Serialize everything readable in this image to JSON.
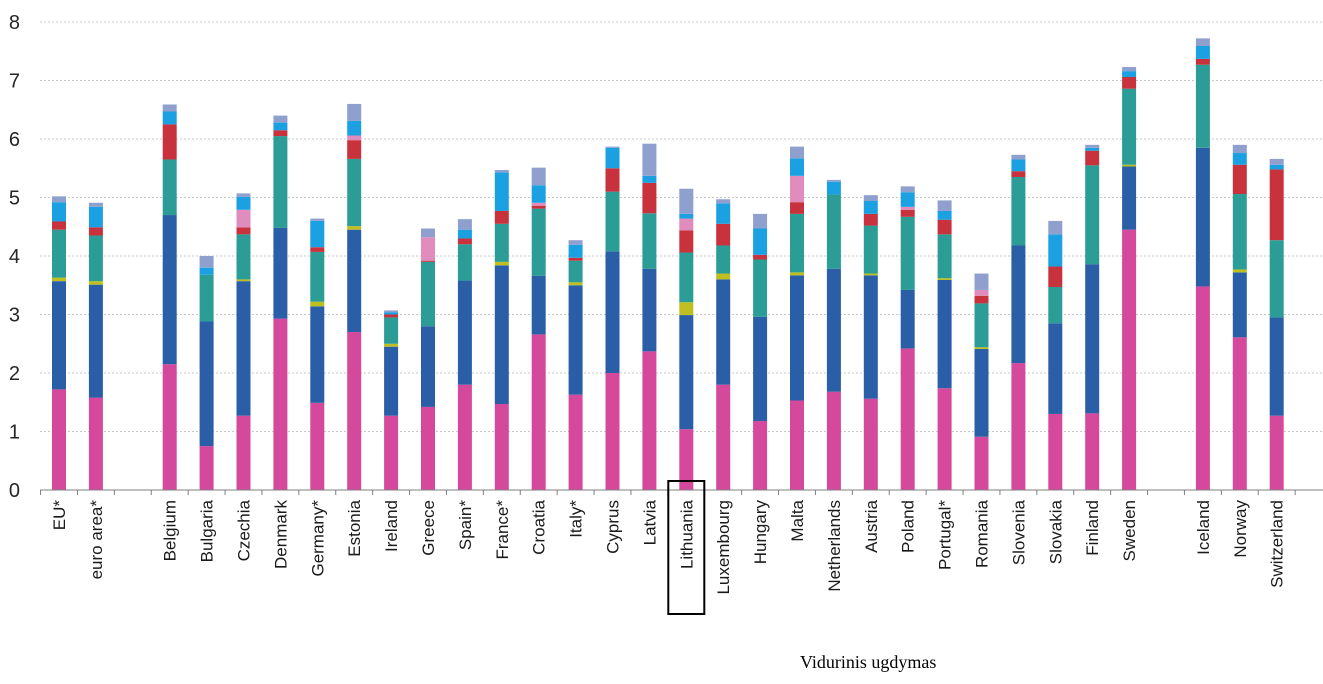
{
  "chart_data": {
    "type": "bar",
    "stacked": true,
    "ylim": [
      0,
      8
    ],
    "yticks": [
      0,
      1,
      2,
      3,
      4,
      5,
      6,
      7,
      8
    ],
    "grid": true,
    "highlighted_category": "Lithuania",
    "caption": "Vidurinis ugdymas",
    "groups": [
      [
        "EU*",
        "euro area*"
      ],
      [
        "Belgium",
        "Bulgaria",
        "Czechia",
        "Denmark",
        "Germany*",
        "Estonia",
        "Ireland",
        "Greece",
        "Spain*",
        "France*",
        "Croatia",
        "Italy*",
        "Cyprus",
        "Latvia",
        "Lithuania",
        "Luxembourg",
        "Hungary",
        "Malta",
        "Netherlands",
        "Austria",
        "Poland",
        "Portugal*",
        "Romania",
        "Slovenia",
        "Slovakia",
        "Finland",
        "Sweden"
      ],
      [
        "Iceland",
        "Norway",
        "Switzerland"
      ]
    ],
    "categories": [
      "EU*",
      "euro area*",
      "Belgium",
      "Bulgaria",
      "Czechia",
      "Denmark",
      "Germany*",
      "Estonia",
      "Ireland",
      "Greece",
      "Spain*",
      "France*",
      "Croatia",
      "Italy*",
      "Cyprus",
      "Latvia",
      "Lithuania",
      "Luxembourg",
      "Hungary",
      "Malta",
      "Netherlands",
      "Austria",
      "Poland",
      "Portugal*",
      "Romania",
      "Slovenia",
      "Slovakia",
      "Finland",
      "Sweden",
      "Iceland",
      "Norway",
      "Switzerland"
    ],
    "series": [
      {
        "color": "#d4499b",
        "values": [
          1.72,
          1.58,
          2.15,
          0.75,
          1.27,
          2.93,
          1.49,
          2.7,
          1.27,
          1.42,
          1.8,
          1.47,
          2.66,
          1.63,
          2.0,
          2.37,
          1.04,
          1.8,
          1.18,
          1.53,
          1.68,
          1.56,
          2.42,
          1.74,
          0.91,
          2.17,
          1.3,
          1.31,
          4.45,
          3.48,
          2.61,
          1.27
        ]
      },
      {
        "color": "#2a5fa8",
        "values": [
          1.85,
          1.93,
          2.55,
          2.13,
          2.3,
          1.55,
          1.65,
          1.75,
          1.18,
          1.38,
          1.78,
          2.37,
          1.0,
          1.87,
          2.08,
          1.41,
          1.95,
          1.8,
          1.78,
          2.14,
          2.1,
          2.11,
          1.0,
          1.85,
          1.5,
          2.01,
          1.55,
          2.55,
          1.08,
          2.37,
          1.11,
          1.68
        ]
      },
      {
        "color": "#bfbf1f",
        "values": [
          0.06,
          0.06,
          0.0,
          0.0,
          0.03,
          0.0,
          0.08,
          0.06,
          0.05,
          0.0,
          0.0,
          0.06,
          0.0,
          0.05,
          0.0,
          0.0,
          0.22,
          0.1,
          0.0,
          0.05,
          0.0,
          0.03,
          0.0,
          0.03,
          0.03,
          0.0,
          0.0,
          0.0,
          0.03,
          0.0,
          0.05,
          0.0
        ]
      },
      {
        "color": "#2c9c96",
        "values": [
          0.82,
          0.78,
          0.95,
          0.8,
          0.77,
          1.57,
          0.85,
          1.15,
          0.45,
          1.1,
          0.62,
          0.65,
          1.15,
          0.37,
          1.02,
          0.95,
          0.85,
          0.48,
          0.98,
          1.0,
          1.27,
          0.82,
          1.25,
          0.75,
          0.75,
          1.17,
          0.62,
          1.69,
          1.3,
          1.42,
          1.29,
          1.32
        ]
      },
      {
        "color": "#c8323c",
        "values": [
          0.14,
          0.14,
          0.6,
          0.0,
          0.12,
          0.1,
          0.08,
          0.32,
          0.05,
          0.02,
          0.1,
          0.22,
          0.05,
          0.05,
          0.4,
          0.52,
          0.38,
          0.37,
          0.08,
          0.2,
          0.0,
          0.2,
          0.12,
          0.25,
          0.13,
          0.1,
          0.35,
          0.25,
          0.2,
          0.1,
          0.5,
          1.21
        ]
      },
      {
        "color": "#e08cbd",
        "values": [
          0.0,
          0.0,
          0.0,
          0.0,
          0.3,
          0.0,
          0.0,
          0.08,
          0.0,
          0.4,
          0.0,
          0.0,
          0.05,
          0.0,
          0.0,
          0.0,
          0.2,
          0.0,
          0.0,
          0.45,
          0.0,
          0.0,
          0.05,
          0.0,
          0.1,
          0.0,
          0.0,
          0.0,
          0.0,
          0.0,
          0.0,
          0.0
        ]
      },
      {
        "color": "#1ba1e2",
        "values": [
          0.33,
          0.35,
          0.22,
          0.12,
          0.22,
          0.13,
          0.45,
          0.25,
          0.04,
          0.0,
          0.15,
          0.66,
          0.3,
          0.22,
          0.35,
          0.12,
          0.08,
          0.35,
          0.45,
          0.3,
          0.22,
          0.22,
          0.25,
          0.15,
          0.0,
          0.2,
          0.55,
          0.05,
          0.1,
          0.22,
          0.2,
          0.08
        ]
      },
      {
        "color": "#8fa0cf",
        "values": [
          0.1,
          0.07,
          0.12,
          0.2,
          0.06,
          0.12,
          0.04,
          0.29,
          0.03,
          0.15,
          0.18,
          0.04,
          0.3,
          0.08,
          0.02,
          0.55,
          0.43,
          0.07,
          0.25,
          0.2,
          0.03,
          0.1,
          0.1,
          0.18,
          0.28,
          0.08,
          0.23,
          0.05,
          0.07,
          0.13,
          0.14,
          0.1
        ]
      }
    ]
  }
}
